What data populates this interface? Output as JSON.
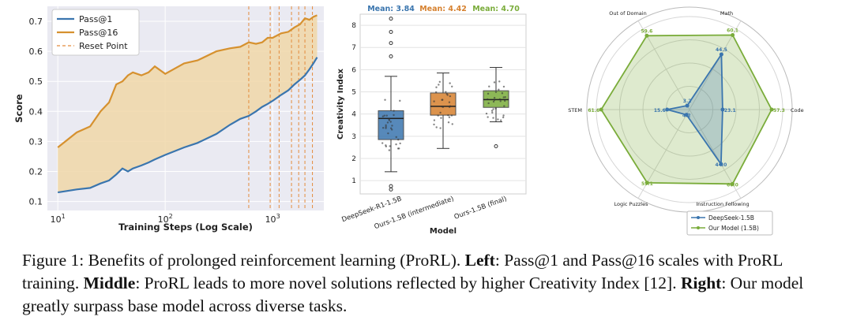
{
  "chart_data": [
    {
      "type": "line",
      "xlabel": "Training Steps (Log Scale)",
      "ylabel": "Score",
      "xscale": "log",
      "xlim": [
        8,
        3000
      ],
      "ylim": [
        0.07,
        0.75
      ],
      "x_ticks": [
        10,
        100,
        1000
      ],
      "x_tick_labels": [
        "10",
        "10",
        "10"
      ],
      "x_tick_exponents": [
        "1",
        "2",
        "3"
      ],
      "y_ticks": [
        0.1,
        0.2,
        0.3,
        0.4,
        0.5,
        0.6,
        0.7
      ],
      "y_tick_labels": [
        "0.1",
        "0.2",
        "0.3",
        "0.4",
        "0.5",
        "0.6",
        "0.7"
      ],
      "grid": true,
      "legend_position": "top-left",
      "reset_points": [
        600,
        950,
        1150,
        1500,
        1750,
        2000,
        2350
      ],
      "series": [
        {
          "name": "Pass@1",
          "color": "#3a75ae",
          "points": [
            [
              10,
              0.13
            ],
            [
              15,
              0.14
            ],
            [
              20,
              0.145
            ],
            [
              25,
              0.16
            ],
            [
              30,
              0.17
            ],
            [
              35,
              0.19
            ],
            [
              40,
              0.21
            ],
            [
              45,
              0.2
            ],
            [
              50,
              0.21
            ],
            [
              60,
              0.22
            ],
            [
              70,
              0.23
            ],
            [
              80,
              0.24
            ],
            [
              100,
              0.255
            ],
            [
              150,
              0.28
            ],
            [
              200,
              0.295
            ],
            [
              300,
              0.325
            ],
            [
              400,
              0.355
            ],
            [
              500,
              0.375
            ],
            [
              600,
              0.385
            ],
            [
              700,
              0.4
            ],
            [
              800,
              0.415
            ],
            [
              900,
              0.425
            ],
            [
              1000,
              0.435
            ],
            [
              1200,
              0.455
            ],
            [
              1400,
              0.47
            ],
            [
              1600,
              0.49
            ],
            [
              1800,
              0.505
            ],
            [
              2000,
              0.52
            ],
            [
              2200,
              0.54
            ],
            [
              2400,
              0.56
            ],
            [
              2600,
              0.58
            ]
          ]
        },
        {
          "name": "Pass@16",
          "color": "#d6912f",
          "points": [
            [
              10,
              0.28
            ],
            [
              15,
              0.33
            ],
            [
              20,
              0.35
            ],
            [
              25,
              0.4
            ],
            [
              30,
              0.43
            ],
            [
              35,
              0.49
            ],
            [
              40,
              0.5
            ],
            [
              45,
              0.52
            ],
            [
              50,
              0.53
            ],
            [
              60,
              0.52
            ],
            [
              70,
              0.53
            ],
            [
              80,
              0.55
            ],
            [
              100,
              0.525
            ],
            [
              150,
              0.56
            ],
            [
              200,
              0.57
            ],
            [
              300,
              0.6
            ],
            [
              400,
              0.61
            ],
            [
              500,
              0.615
            ],
            [
              600,
              0.63
            ],
            [
              700,
              0.625
            ],
            [
              800,
              0.63
            ],
            [
              900,
              0.645
            ],
            [
              1000,
              0.645
            ],
            [
              1200,
              0.66
            ],
            [
              1400,
              0.665
            ],
            [
              1600,
              0.68
            ],
            [
              1800,
              0.69
            ],
            [
              2000,
              0.71
            ],
            [
              2200,
              0.705
            ],
            [
              2400,
              0.715
            ],
            [
              2600,
              0.72
            ]
          ]
        }
      ],
      "legend": [
        "Pass@1",
        "Pass@16",
        "Reset Point"
      ]
    },
    {
      "type": "box",
      "xlabel": "Model",
      "ylabel": "Creativity Index",
      "ylim": [
        0.4,
        8.5
      ],
      "y_ticks": [
        1,
        2,
        3,
        4,
        5,
        6,
        7,
        8
      ],
      "y_tick_labels": [
        "1",
        "2",
        "3",
        "4",
        "5",
        "6",
        "7",
        "8"
      ],
      "grid": true,
      "categories": [
        "DeepSeek-R1-1.5B",
        "Ours-1.5B (intermediate)",
        "Ours-1.5B (final)"
      ],
      "colors": [
        "#3a75ae",
        "#d6812f",
        "#7aac3a"
      ],
      "means": [
        3.84,
        4.42,
        4.7
      ],
      "mean_labels": [
        "Mean: 3.84",
        "Mean: 4.42",
        "Mean: 4.70"
      ],
      "boxes": [
        {
          "whisker_low": 1.4,
          "q1": 2.85,
          "median": 3.8,
          "q3": 4.15,
          "whisker_high": 5.7,
          "outliers": [
            0.6,
            0.75,
            6.6,
            7.2,
            7.7,
            8.3
          ]
        },
        {
          "whisker_low": 2.45,
          "q1": 3.95,
          "median": 4.35,
          "q3": 4.95,
          "whisker_high": 5.85,
          "outliers": []
        },
        {
          "whisker_low": 3.65,
          "q1": 4.3,
          "median": 4.65,
          "q3": 5.05,
          "whisker_high": 6.1,
          "outliers": [
            2.55
          ]
        }
      ]
    },
    {
      "type": "radar",
      "axes": [
        "Math",
        "Code",
        "Instruction Following",
        "Logic Puzzles",
        "STEM",
        "Out of Domain"
      ],
      "series": [
        {
          "name": "DeepSeek-1.5B",
          "color": "#3a75ae",
          "values": [
            44.5,
            23.1,
            44.0,
            4.2,
            15.6,
            3.2
          ],
          "value_labels": [
            "44.5",
            "23.1",
            "44.0",
            "4.2",
            "15.6",
            "3.2"
          ]
        },
        {
          "name": "Our Model (1.5B)",
          "color": "#7aac3a",
          "values": [
            60.1,
            57.3,
            60.0,
            59.1,
            61.6,
            59.6
          ],
          "value_labels": [
            "60.1",
            "57.3",
            "60.0",
            "59.1",
            "61.6",
            "59.6"
          ]
        }
      ],
      "legend_position": "bottom-center"
    }
  ],
  "caption": {
    "label": "Figure 1: Benefits of prolonged reinforcement learning (ProRL). ",
    "left_head": "Left",
    "left_text": ": Pass@1 and Pass@16 scales with ProRL training. ",
    "middle_head": "Middle",
    "middle_text": ": ProRL leads to more novel solutions reflected by higher Creativity Index [12]. ",
    "right_head": "Right",
    "right_text": ": Our model greatly surpass base model across diverse tasks."
  }
}
